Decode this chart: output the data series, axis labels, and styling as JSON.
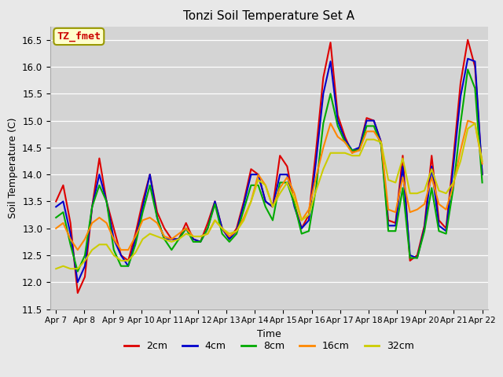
{
  "title": "Tonzi Soil Temperature Set A",
  "xlabel": "Time",
  "ylabel": "Soil Temperature (C)",
  "ylim": [
    11.5,
    16.75
  ],
  "fig_bg_color": "#e8e8e8",
  "plot_bg_color": "#d4d4d4",
  "annotation_text": "TZ_fmet",
  "annotation_color": "#cc0000",
  "annotation_bg": "#ffffcc",
  "annotation_edge": "#999900",
  "series_names": [
    "2cm",
    "4cm",
    "8cm",
    "16cm",
    "32cm"
  ],
  "series_colors": [
    "#dd0000",
    "#0000cc",
    "#00aa00",
    "#ff8800",
    "#cccc00"
  ],
  "series_linewidth": 1.5,
  "x_tick_labels": [
    "Apr 7",
    "Apr 8",
    "Apr 9",
    "Apr 10",
    "Apr 11",
    "Apr 12",
    "Apr 13",
    "Apr 14",
    "Apr 15",
    "Apr 16",
    "Apr 17",
    "Apr 18",
    "Apr 19",
    "Apr 20",
    "Apr 21",
    "Apr 22"
  ],
  "yticks": [
    11.5,
    12.0,
    12.5,
    13.0,
    13.5,
    14.0,
    14.5,
    15.0,
    15.5,
    16.0,
    16.5
  ],
  "data_2cm": [
    13.5,
    13.8,
    13.1,
    11.8,
    12.1,
    13.4,
    14.3,
    13.5,
    13.0,
    12.5,
    12.4,
    12.9,
    13.5,
    14.0,
    13.3,
    13.0,
    12.8,
    12.8,
    13.1,
    12.8,
    12.75,
    13.1,
    13.5,
    13.0,
    12.8,
    13.0,
    13.5,
    14.1,
    14.0,
    13.5,
    13.4,
    14.35,
    14.15,
    13.45,
    13.0,
    13.25,
    14.45,
    15.8,
    16.45,
    15.1,
    14.7,
    14.4,
    14.5,
    15.05,
    15.0,
    14.6,
    13.15,
    13.1,
    14.35,
    12.4,
    12.5,
    13.05,
    14.35,
    13.15,
    13.0,
    14.3,
    15.7,
    16.5,
    16.0,
    14.0
  ],
  "data_4cm": [
    13.4,
    13.5,
    12.9,
    12.0,
    12.3,
    13.4,
    14.0,
    13.5,
    12.8,
    12.5,
    12.3,
    12.8,
    13.4,
    14.0,
    13.2,
    12.8,
    12.8,
    12.8,
    13.0,
    12.8,
    12.75,
    13.0,
    13.5,
    13.0,
    12.8,
    12.95,
    13.45,
    14.0,
    14.0,
    13.5,
    13.4,
    14.0,
    14.0,
    13.4,
    13.0,
    13.15,
    14.25,
    15.5,
    16.1,
    15.0,
    14.65,
    14.45,
    14.5,
    15.0,
    15.0,
    14.6,
    13.05,
    13.05,
    14.15,
    12.5,
    12.45,
    13.0,
    14.15,
    13.05,
    12.95,
    14.15,
    15.45,
    16.15,
    16.1,
    14.0
  ],
  "data_8cm": [
    13.2,
    13.3,
    12.7,
    12.2,
    12.5,
    13.4,
    13.8,
    13.5,
    12.6,
    12.3,
    12.3,
    12.7,
    13.3,
    13.8,
    13.2,
    12.8,
    12.6,
    12.8,
    13.0,
    12.75,
    12.75,
    13.0,
    13.45,
    12.9,
    12.75,
    12.9,
    13.35,
    13.8,
    13.8,
    13.4,
    13.15,
    13.85,
    13.85,
    13.45,
    12.9,
    12.95,
    13.75,
    14.95,
    15.5,
    14.9,
    14.6,
    14.45,
    14.45,
    14.9,
    14.9,
    14.55,
    12.95,
    12.95,
    13.75,
    12.45,
    12.45,
    12.95,
    13.75,
    12.95,
    12.9,
    13.75,
    14.95,
    15.95,
    15.6,
    13.85
  ],
  "data_16cm": [
    13.0,
    13.1,
    12.8,
    12.6,
    12.8,
    13.1,
    13.2,
    13.1,
    12.8,
    12.6,
    12.6,
    12.85,
    13.15,
    13.2,
    13.1,
    12.85,
    12.8,
    12.9,
    13.0,
    12.85,
    12.85,
    12.9,
    13.15,
    13.0,
    12.85,
    12.95,
    13.2,
    13.5,
    14.0,
    13.8,
    13.4,
    13.75,
    13.95,
    13.65,
    13.15,
    13.35,
    13.95,
    14.5,
    14.95,
    14.7,
    14.6,
    14.4,
    14.45,
    14.8,
    14.8,
    14.6,
    13.35,
    13.3,
    13.95,
    13.3,
    13.35,
    13.45,
    13.95,
    13.45,
    13.35,
    13.8,
    14.45,
    15.0,
    14.95,
    14.2
  ],
  "data_32cm": [
    12.25,
    12.3,
    12.25,
    12.25,
    12.4,
    12.6,
    12.7,
    12.7,
    12.5,
    12.4,
    12.4,
    12.55,
    12.8,
    12.9,
    12.85,
    12.8,
    12.75,
    12.8,
    12.9,
    12.85,
    12.85,
    12.9,
    13.15,
    13.0,
    12.9,
    12.95,
    13.15,
    13.5,
    13.9,
    13.8,
    13.4,
    13.65,
    13.85,
    13.55,
    13.15,
    13.25,
    13.7,
    14.1,
    14.4,
    14.4,
    14.4,
    14.35,
    14.35,
    14.65,
    14.65,
    14.6,
    13.9,
    13.85,
    14.3,
    13.65,
    13.65,
    13.7,
    14.1,
    13.7,
    13.65,
    13.85,
    14.25,
    14.85,
    14.95,
    14.25
  ]
}
